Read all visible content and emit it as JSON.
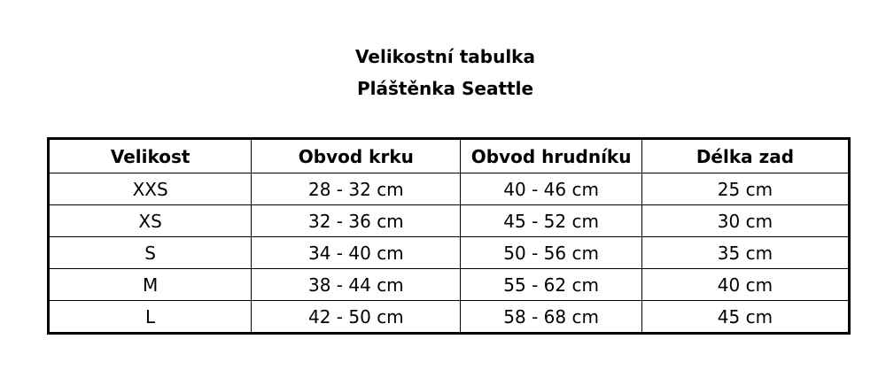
{
  "title": "Velikostní tabulka",
  "subtitle": "Pláštěnka Seattle",
  "table": {
    "headers": [
      "Velikost",
      "Obvod krku",
      "Obvod hrudníku",
      "Délka zad"
    ],
    "rows": [
      [
        "XXS",
        "28 - 32 cm",
        "40 - 46 cm",
        "25 cm"
      ],
      [
        "XS",
        "32 - 36 cm",
        "45 - 52 cm",
        "30 cm"
      ],
      [
        "S",
        "34 - 40 cm",
        "50 - 56 cm",
        "35 cm"
      ],
      [
        "M",
        "38 - 44 cm",
        "55 - 62 cm",
        "40 cm"
      ],
      [
        "L",
        "42 - 50 cm",
        "58 - 68 cm",
        "45 cm"
      ]
    ]
  }
}
